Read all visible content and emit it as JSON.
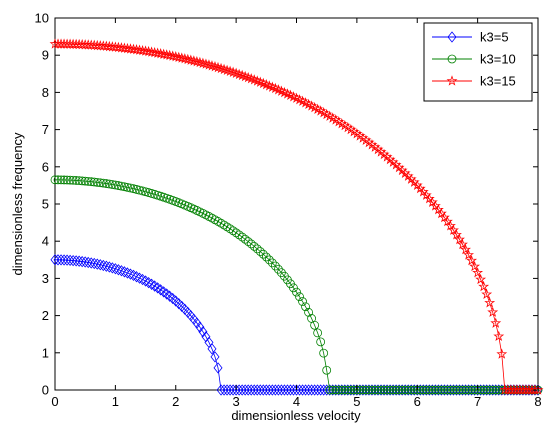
{
  "chart_data": {
    "type": "line",
    "title": "",
    "xlabel": "dimensionless velocity",
    "ylabel": "dimensionless frequency",
    "xlim": [
      0,
      8
    ],
    "ylim": [
      0,
      10
    ],
    "xticks": [
      "0",
      "1",
      "2",
      "3",
      "4",
      "5",
      "6",
      "7",
      "8"
    ],
    "yticks": [
      "0",
      "1",
      "2",
      "3",
      "4",
      "5",
      "6",
      "7",
      "8",
      "9",
      "10"
    ],
    "grid": false,
    "legend_position": "top-right",
    "series": [
      {
        "name": "k3=5",
        "color": "#0000ff",
        "marker": "diamond",
        "omega0": 3.5,
        "v_critical": 2.74
      },
      {
        "name": "k3=10",
        "color": "#008000",
        "marker": "circle",
        "omega0": 5.65,
        "v_critical": 4.52
      },
      {
        "name": "k3=15",
        "color": "#ff0000",
        "marker": "star",
        "omega0": 9.3,
        "v_critical": 7.44
      }
    ]
  }
}
